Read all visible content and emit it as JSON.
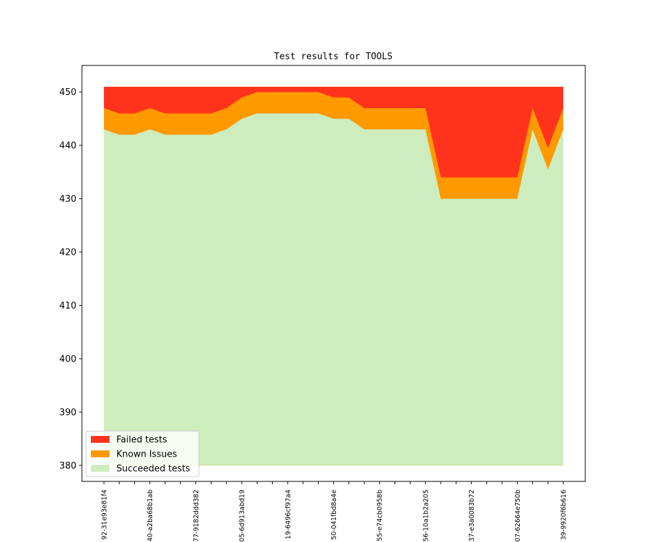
{
  "chart_data": {
    "type": "area",
    "title": "Test results for TOOLS",
    "xlabel": "",
    "ylabel": "",
    "ylim": [
      377,
      455
    ],
    "y_ticks": [
      380,
      390,
      400,
      410,
      420,
      430,
      440,
      450
    ],
    "grid": false,
    "legend_position": "lower-left",
    "x_tick_labels": [
      "92-31e93e81f4",
      "40-a2ba68b1ab",
      "77-9182ddd382",
      "05-6d913abd19",
      "19-6496cf97a4",
      "50-041fbd8a4e",
      "55-e74cb0958b",
      "56-10a1b2a205",
      "37-e3a0083b72",
      "07-62664e750b",
      "39-9920f6b616"
    ],
    "labeled_every": 3,
    "point_count": 31,
    "series": [
      {
        "name": "Failed tests",
        "color": "#ff331c",
        "values": [
          451,
          451,
          451,
          451,
          451,
          451,
          451,
          451,
          451,
          451,
          451,
          451,
          451,
          451,
          451,
          451,
          451,
          451,
          451,
          451,
          451,
          451,
          451,
          451,
          451,
          451,
          451,
          451,
          451,
          451,
          451
        ]
      },
      {
        "name": "Known Issues",
        "color": "#ff9900",
        "values": [
          447,
          446,
          446,
          447,
          446,
          446,
          446,
          446,
          447,
          449,
          450,
          450,
          450,
          450,
          450,
          449,
          449,
          447,
          447,
          447,
          447,
          447,
          434,
          434,
          434,
          434,
          434,
          434,
          447,
          439.5,
          447
        ]
      },
      {
        "name": "Succeeded tests",
        "color": "#ceedbe",
        "values": [
          443,
          442,
          442,
          443,
          442,
          442,
          442,
          442,
          443,
          445,
          446,
          446,
          446,
          446,
          446,
          445,
          445,
          443,
          443,
          443,
          443,
          443,
          430,
          430,
          430,
          430,
          430,
          430,
          443,
          435.5,
          443
        ]
      }
    ],
    "baseline": 380
  }
}
